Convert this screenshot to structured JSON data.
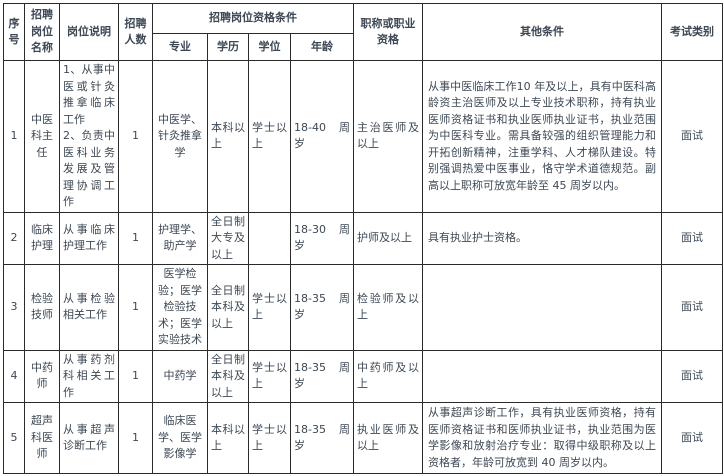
{
  "table": {
    "header": {
      "no": "序号",
      "name": "招聘岗位名称",
      "desc": "岗位说明",
      "count": "招聘人数",
      "qual_group": "招聘岗位资格条件",
      "major": "专业",
      "edu": "学历",
      "degree": "学位",
      "age": "年龄",
      "title": "职称或职业资格",
      "other": "其他条件",
      "exam": "考试类别"
    },
    "rows": [
      {
        "no": "1",
        "name": "中医科主任",
        "desc": "1、从事中医或针灸推拿临床工作\n2、负责中医科业务发展及管理协调工作",
        "count": "1",
        "major": "中医学、针灸推拿学",
        "edu": "本科以上",
        "degree": "学士以上",
        "age": "18-40 周岁",
        "title": "主治医师及以上",
        "other": "从事中医临床工作10 年及以上，具有中医科高龄资主治医师及以上专业技术职称，持有执业医师资格证书和执业医师执业证书，执业范围为中医科专业。需具备较强的组织管理能力和开拓创新精神，注重学科、人才梯队建设。特别强调热爱中医事业，恪守学术道德规范。副高以上职称可放宽年龄至 45 周岁以内。",
        "exam": "面试"
      },
      {
        "no": "2",
        "name": "临床护理",
        "desc": "从事临床护理工作",
        "count": "1",
        "major": "护理学、助产学",
        "edu": "全日制大专及以上",
        "degree": "",
        "age": "18-30 周岁",
        "title": "护师及以上",
        "other": "具有执业护士资格。",
        "exam": "面试"
      },
      {
        "no": "3",
        "name": "检验技师",
        "desc": "从事检验相关工作",
        "count": "1",
        "major": "医学检验；医学检验技术；医学实验技术",
        "edu": "全日制本科及以上",
        "degree": "学士以上",
        "age": "18-35 周岁",
        "title": "检验师及以上",
        "other": "",
        "exam": "面试"
      },
      {
        "no": "4",
        "name": "中药师",
        "desc": "从事药剂科相关工作",
        "count": "1",
        "major": "中药学",
        "edu": "全日制本科及以上",
        "degree": "学士以上",
        "age": "18-35 周岁",
        "title": "中药师及以上",
        "other": "",
        "exam": "面试"
      },
      {
        "no": "5",
        "name": "超声科医师",
        "desc": "从事超声诊断工作",
        "count": "1",
        "major": "临床医学、医学影像学",
        "edu": "本科以上",
        "degree": "学士以上",
        "age": "18-35 周岁",
        "title": "执业医师及以上",
        "other": "从事超声诊断工作，具有执业医师资格，持有医师资格证书和医师执业证书，执业范围为医学影像和放射治疗专业：取得中级职称及以上资格者，年龄可放宽到 40 周岁以内。",
        "exam": "面试"
      }
    ]
  }
}
